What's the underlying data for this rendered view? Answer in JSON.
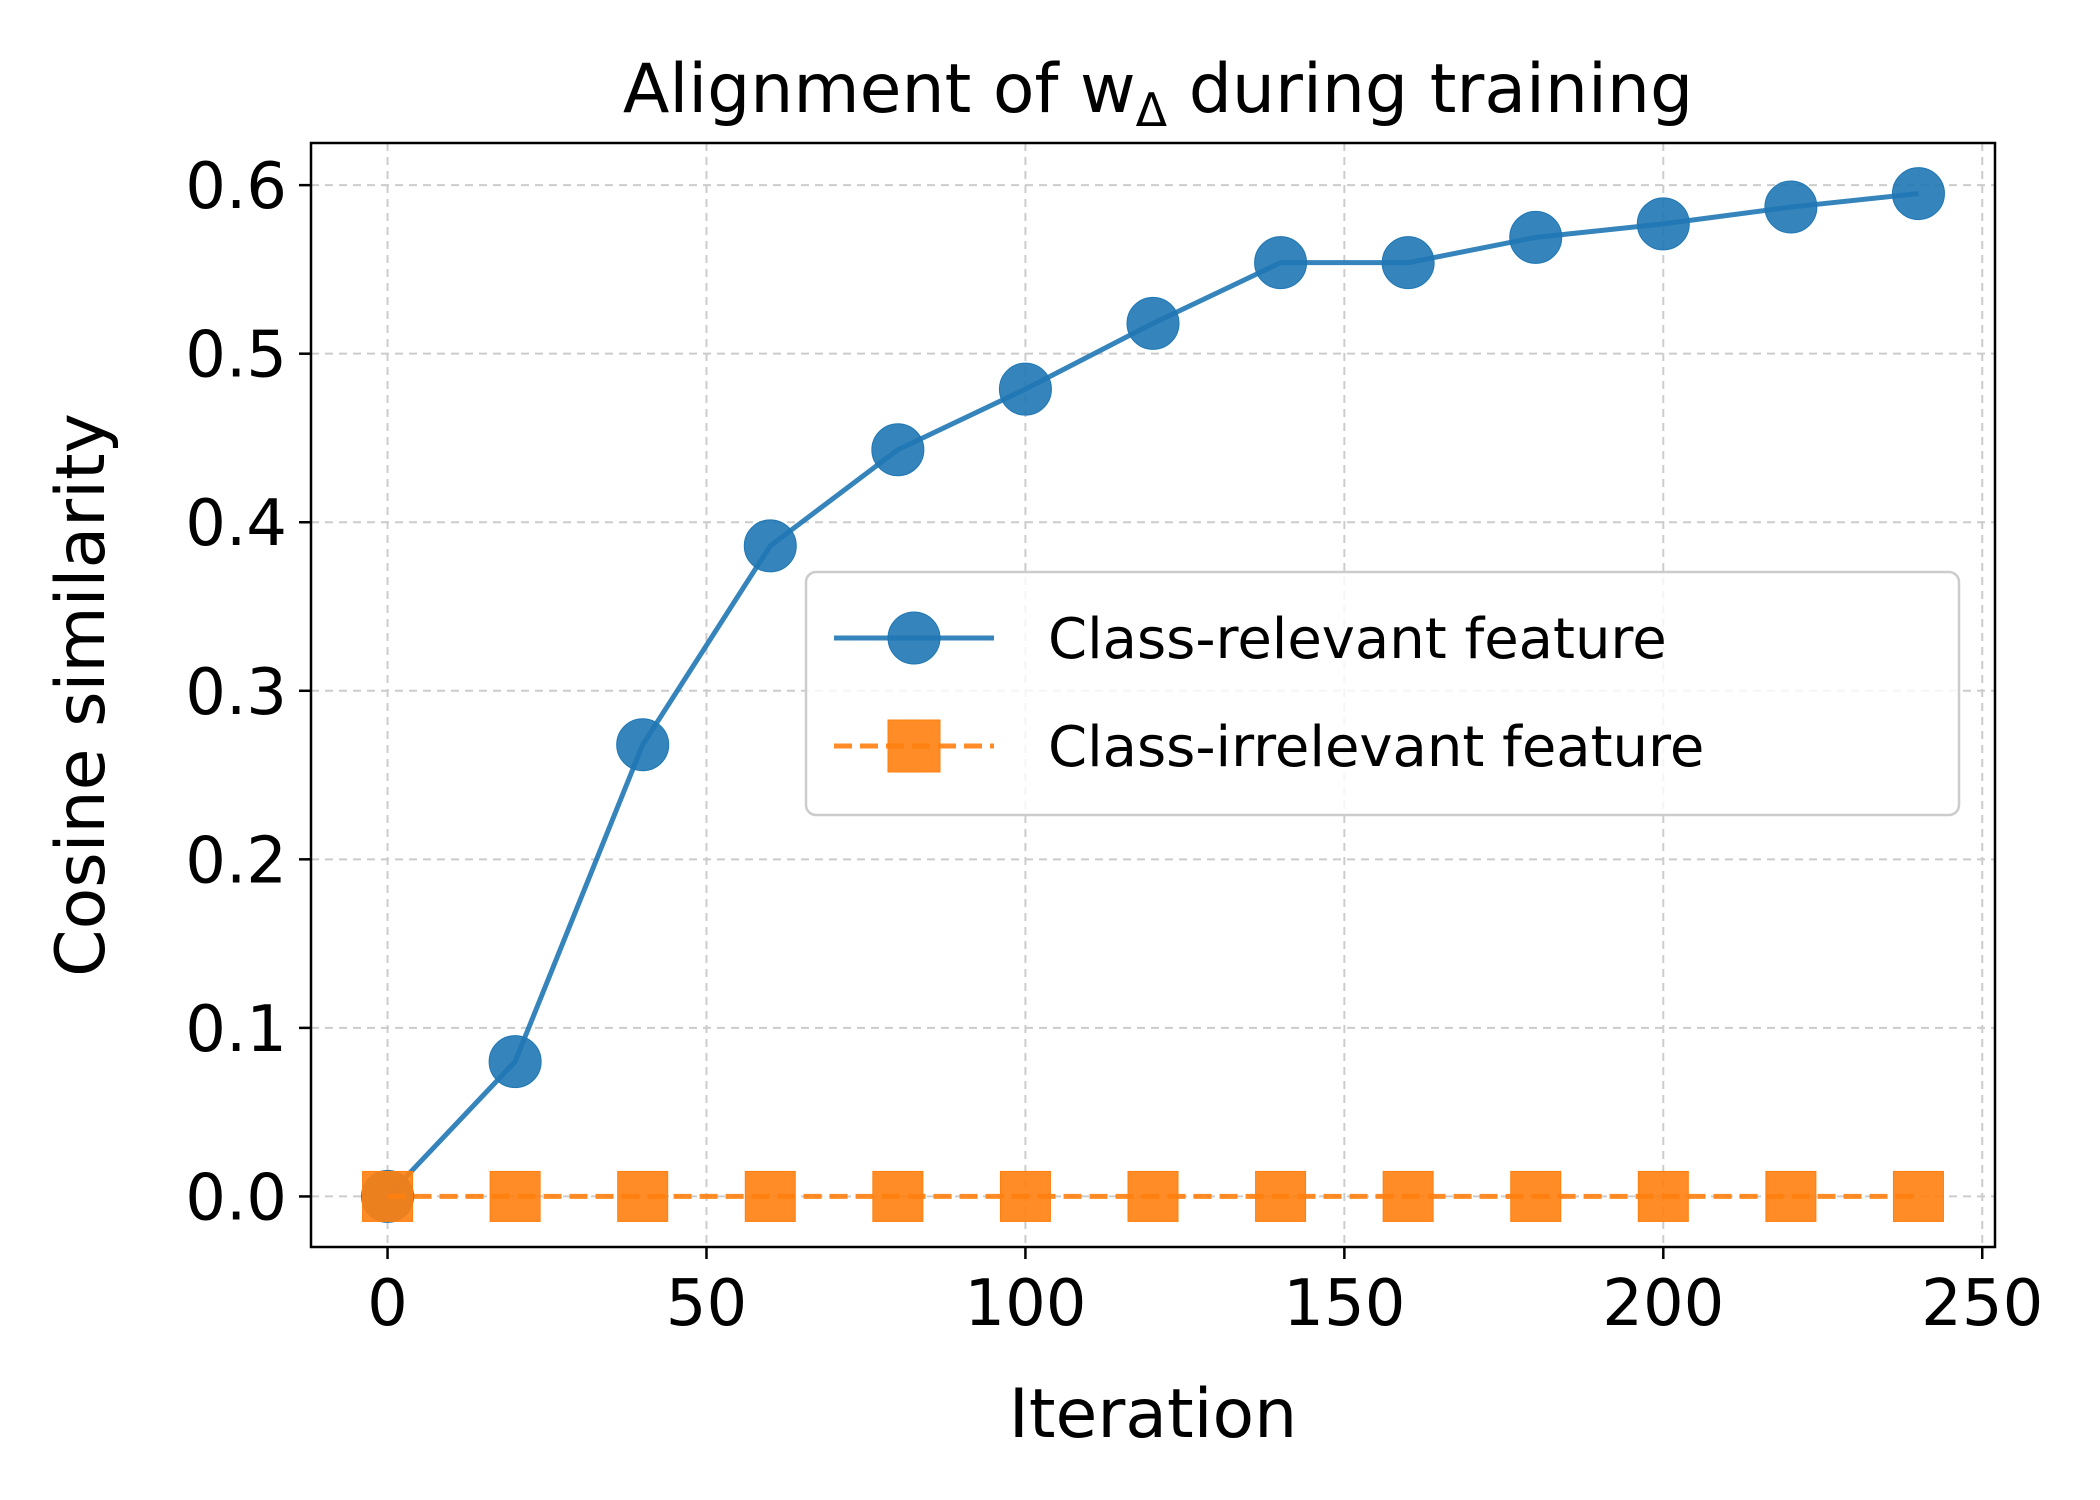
{
  "chart_data": {
    "type": "line",
    "title": "Alignment of w",
    "title_subscript": "Δ",
    "title_suffix": " during training",
    "xlabel": "Iteration",
    "ylabel": "Cosine similarity",
    "xlim": [
      -12,
      252
    ],
    "ylim": [
      -0.03,
      0.625
    ],
    "xticks": [
      0,
      50,
      100,
      150,
      200,
      250
    ],
    "xtick_labels": [
      "0",
      "50",
      "100",
      "150",
      "200",
      "250"
    ],
    "yticks": [
      0.0,
      0.1,
      0.2,
      0.3,
      0.4,
      0.5,
      0.6
    ],
    "ytick_labels": [
      "0.0",
      "0.1",
      "0.2",
      "0.3",
      "0.4",
      "0.5",
      "0.6"
    ],
    "grid": true,
    "legend_position": "center-right",
    "x": [
      0,
      20,
      40,
      60,
      80,
      100,
      120,
      140,
      160,
      180,
      200,
      220,
      240
    ],
    "series": [
      {
        "name": "Class-relevant feature",
        "values": [
          0.0,
          0.08,
          0.268,
          0.386,
          0.443,
          0.479,
          0.518,
          0.554,
          0.554,
          0.569,
          0.577,
          0.587,
          0.595
        ],
        "color": "#1f77b4",
        "marker": "circle",
        "linestyle": "solid"
      },
      {
        "name": "Class-irrelevant feature",
        "values": [
          0.0,
          0.0,
          0.0,
          0.0,
          0.0,
          0.0,
          0.0,
          0.0,
          0.0,
          0.0,
          0.0,
          0.0,
          0.0
        ],
        "color": "#ff7f0e",
        "marker": "square",
        "linestyle": "dashed"
      }
    ]
  }
}
